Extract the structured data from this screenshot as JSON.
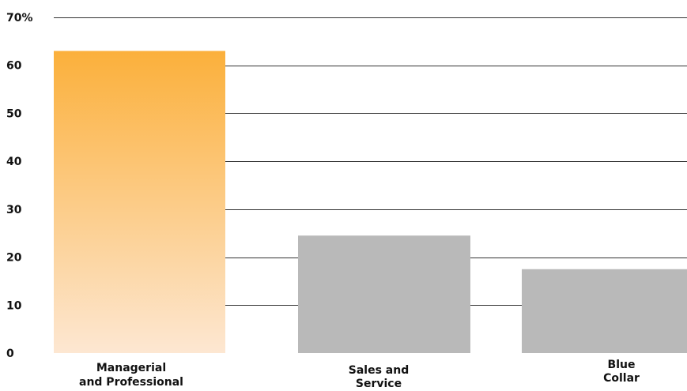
{
  "chart_data": {
    "type": "bar",
    "categories": [
      [
        "Managerial",
        "and Professional"
      ],
      [
        "Sales and",
        "Service"
      ],
      [
        "Blue",
        "Collar"
      ]
    ],
    "values": [
      63,
      24.5,
      17.5
    ],
    "ylim": [
      0,
      70
    ],
    "yticks": [
      0,
      10,
      20,
      30,
      40,
      50,
      60,
      70
    ],
    "ytick_labels": [
      "0",
      "10",
      "20",
      "30",
      "40",
      "50",
      "60",
      "70%"
    ],
    "grid": true,
    "colors": {
      "highlight_top": "#fbb03b",
      "highlight_bottom": "#fde7d2",
      "bar": "#b9b9b9",
      "grid": "#333333"
    }
  }
}
